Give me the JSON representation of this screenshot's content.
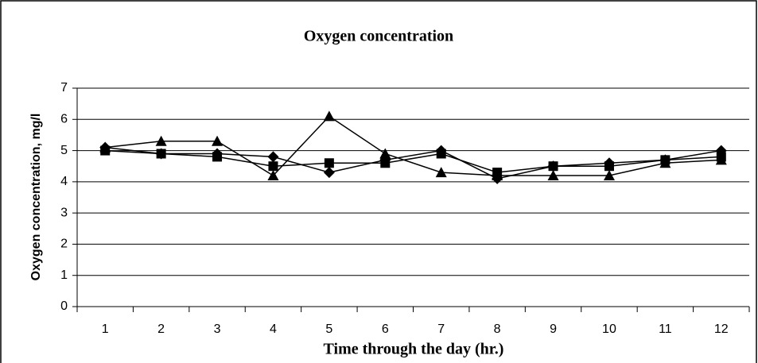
{
  "chart_data": {
    "type": "line",
    "title": "Oxygen concentration",
    "xlabel": "Time through the day (hr.)",
    "ylabel": "Oxygen concentration, mg/l",
    "categories": [
      1,
      2,
      3,
      4,
      5,
      6,
      7,
      8,
      9,
      10,
      11,
      12
    ],
    "series": [
      {
        "color": "#000000",
        "marker": "diamond",
        "values": [
          5.1,
          4.9,
          4.9,
          4.8,
          4.3,
          4.7,
          5.0,
          4.1,
          4.5,
          4.6,
          4.7,
          5.0
        ]
      },
      {
        "color": "#000000",
        "marker": "square",
        "values": [
          5.0,
          4.9,
          4.8,
          4.5,
          4.6,
          4.6,
          4.9,
          4.3,
          4.5,
          4.5,
          4.7,
          4.8
        ]
      },
      {
        "color": "#000000",
        "marker": "triangle",
        "values": [
          5.1,
          5.3,
          5.3,
          4.2,
          6.1,
          4.9,
          4.3,
          4.2,
          4.2,
          4.2,
          4.6,
          4.7
        ]
      }
    ],
    "ylim": [
      0,
      7
    ],
    "yticks": [
      0,
      1,
      2,
      3,
      4,
      5,
      6,
      7
    ],
    "grid": true
  }
}
